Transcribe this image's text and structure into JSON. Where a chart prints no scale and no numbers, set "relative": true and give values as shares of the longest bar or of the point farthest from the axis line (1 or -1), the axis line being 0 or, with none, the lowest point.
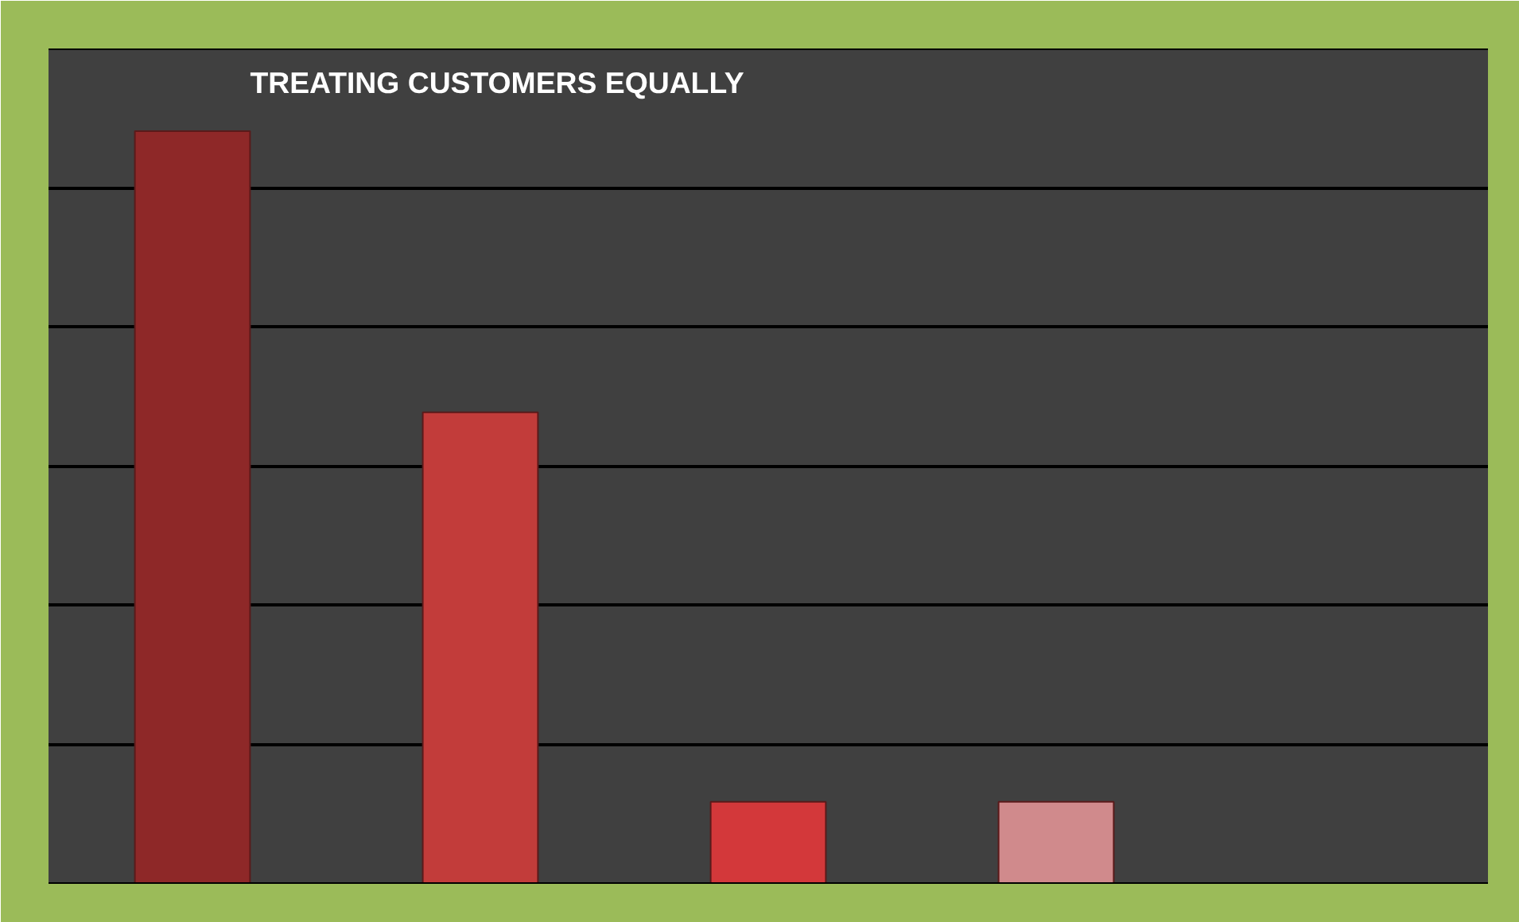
{
  "chart_data": {
    "type": "bar",
    "title": "TREATING CUSTOMERS EQUALLY",
    "categories": [
      null,
      null,
      null,
      null
    ],
    "values": [
      1,
      0.626,
      0.108,
      0.108
    ],
    "colors": [
      "#8e2828",
      "#c23c3a",
      "#d3383a",
      "#d08a8c"
    ],
    "relative": true,
    "grid": "y"
  }
}
